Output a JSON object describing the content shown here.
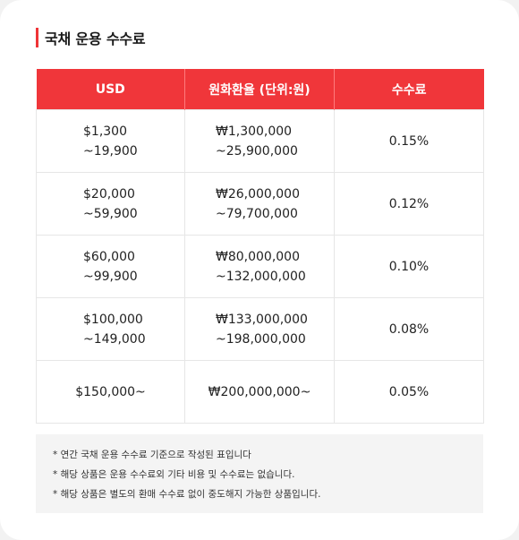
{
  "section": {
    "title": "국채 운용 수수료"
  },
  "table": {
    "headers": [
      "USD",
      "원화환율 (단위:원)",
      "수수료"
    ],
    "rows": [
      {
        "usd": [
          "$1,300",
          "~19,900"
        ],
        "krw": [
          "₩1,300,000",
          "~25,900,000"
        ],
        "fee": "0.15%"
      },
      {
        "usd": [
          "$20,000",
          "~59,900"
        ],
        "krw": [
          "₩26,000,000",
          "~79,700,000"
        ],
        "fee": "0.12%"
      },
      {
        "usd": [
          "$60,000",
          "~99,900"
        ],
        "krw": [
          "₩80,000,000",
          "~132,000,000"
        ],
        "fee": "0.10%"
      },
      {
        "usd": [
          "$100,000",
          "~149,000"
        ],
        "krw": [
          "₩133,000,000",
          "~198,000,000"
        ],
        "fee": "0.08%"
      },
      {
        "usd": [
          "$150,000~"
        ],
        "krw": [
          "₩200,000,000~"
        ],
        "fee": "0.05%"
      }
    ]
  },
  "notes": [
    "* 연간 국채 운용 수수료 기준으로 작성된 표입니다",
    "* 해당 상품은 운용 수수료외 기타 비용 및 수수료는 없습니다.",
    "* 해당 상품은 별도의 환매 수수료 없이 중도해지 가능한 상품입니다."
  ],
  "colors": {
    "accent": "#f0363a",
    "notes_background": "#f4f4f4"
  }
}
